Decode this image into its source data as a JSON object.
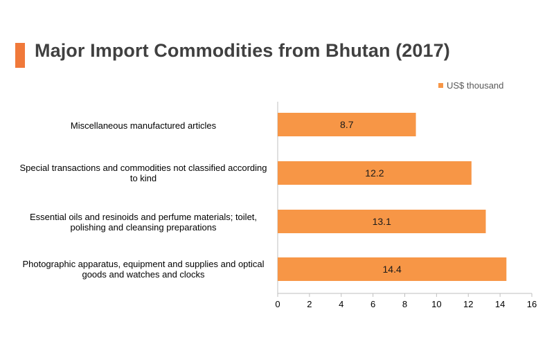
{
  "page": {
    "title": "Major Import Commodities from Bhutan (2017)",
    "accent_color": "#f0793a"
  },
  "chart_data": {
    "type": "bar",
    "orientation": "horizontal",
    "title": "Major Import Commodities from Bhutan (2017)",
    "categories": [
      "Miscellaneous manufactured articles",
      "Special transactions and commodities not classified according to kind",
      "Essential oils and resinoids and perfume materials; toilet, polishing and cleansing preparations",
      "Photographic apparatus, equipment and supplies and optical goods and watches and clocks"
    ],
    "series": [
      {
        "name": "US$ thousand",
        "values": [
          8.7,
          12.2,
          13.1,
          14.4
        ],
        "color": "#f79646"
      }
    ],
    "value_labels": [
      "8.7",
      "12.2",
      "13.1",
      "14.4"
    ],
    "xlim": [
      0,
      16
    ],
    "xticks": [
      "0",
      "2",
      "4",
      "6",
      "8",
      "10",
      "12",
      "14",
      "16"
    ],
    "xlabel": "",
    "ylabel": "",
    "grid": false,
    "legend": {
      "position": "top-right",
      "label": "US$ thousand"
    }
  }
}
